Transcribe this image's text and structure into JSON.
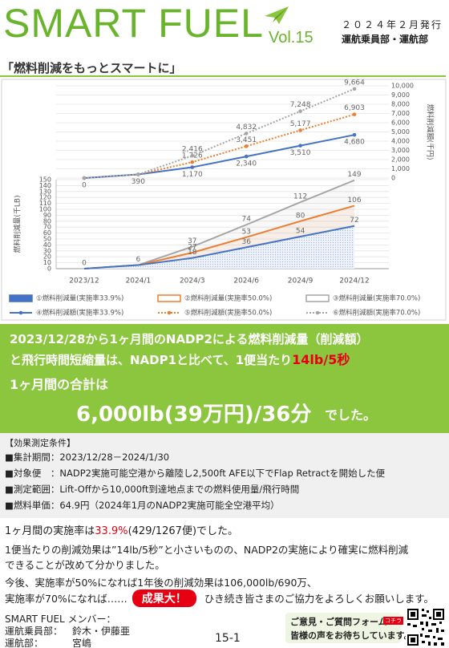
{
  "header": {
    "title": "SMART FUEL",
    "volume": "Vol.15",
    "date": "２０２４年２月発行",
    "department": "運航乗員部・運航部"
  },
  "subtitle": "「燃料削減をもっとスマートに」",
  "chart_data": {
    "type": "line",
    "categories": [
      "2023/12",
      "2024/1",
      "2024/3",
      "2024/6",
      "2024/9",
      "2024/12"
    ],
    "ylabel": "燃料削減量(千LB)",
    "y2label": "燃料削減額(千円)",
    "ylim": [
      0,
      150
    ],
    "yticks": [
      0,
      10,
      20,
      30,
      40,
      50,
      60,
      70,
      80,
      90,
      100,
      110,
      120,
      130,
      140,
      150
    ],
    "y2lim": [
      0,
      10000
    ],
    "y2ticks": [
      0,
      {
        "value": 1000,
        "label": "1,000"
      },
      {
        "value": 2000,
        "label": "2,000"
      },
      {
        "value": 3000,
        "label": "3,000"
      },
      {
        "value": 4000,
        "label": "4,000"
      },
      {
        "value": 5000,
        "label": "5,000"
      },
      {
        "value": 6000,
        "label": "6,000"
      },
      {
        "value": 7000,
        "label": "7,000"
      },
      {
        "value": 8000,
        "label": "8,000"
      },
      {
        "value": 9000,
        "label": "9,000"
      },
      {
        "value": 10000,
        "label": "10,000"
      }
    ],
    "grid": true,
    "series": [
      {
        "name": "①燃料削減量(実施率33.9%)",
        "color": "#4472c4",
        "type": "area",
        "filled": true,
        "values": [
          0,
          6,
          18,
          36,
          54,
          72
        ]
      },
      {
        "name": "②燃料削減量(実施率50.0%)",
        "color": "#ed7d31",
        "type": "area",
        "filled": false,
        "values": [
          0,
          6,
          27,
          53,
          80,
          106
        ]
      },
      {
        "name": "③燃料削減量(実施率70.0%)",
        "color": "#a5a5a5",
        "type": "area",
        "filled": false,
        "values": [
          0,
          6,
          37,
          74,
          112,
          149
        ]
      },
      {
        "name": "④燃料削減額(実施率33.9%)",
        "color": "#4472c4",
        "type": "line",
        "dashed": false,
        "axis": "y2",
        "values": [
          0,
          390,
          1170,
          2340,
          3510,
          4680
        ],
        "value_labels": [
          "0",
          "390",
          "1,170",
          "2,340",
          "3,510",
          "4,680"
        ]
      },
      {
        "name": "⑤燃料削減額(実施率50.0%)",
        "color": "#ed7d31",
        "type": "line",
        "dashed": true,
        "axis": "y2",
        "values": [
          0,
          390,
          1726,
          3451,
          5177,
          6903
        ],
        "value_labels": [
          "0",
          "390",
          "1,726",
          "3,451",
          "5,177",
          "6,903"
        ]
      },
      {
        "name": "⑥燃料削減額(実施率70.0%)",
        "color": "#a5a5a5",
        "type": "line",
        "dashed": true,
        "axis": "y2",
        "values": [
          0,
          390,
          2416,
          4832,
          7248,
          9664
        ],
        "value_labels": [
          "0",
          "390",
          "2,416",
          "4,832",
          "7,248",
          "9,664"
        ]
      }
    ]
  },
  "summary": {
    "line1": "2023/12/28から1ヶ月間のNADP2による燃料削減量（削減額）",
    "line2": "と飛行時間短縮量は、NADP1と比べて、1便当たり",
    "highlight": "14lb/5秒",
    "total_intro": "1ヶ月間の合計は",
    "total": "6,000lb(39万円)/36分",
    "total_end": "でした。"
  },
  "conditions": {
    "heading": "【効果測定条件】",
    "items": [
      "■集計期間：2023/12/28－2024/1/30",
      "■対象便　：NADP2実施可能空港から離陸し2,500ft AFE以下でFlap Retractを開始した便",
      "■測定範囲：Lift-Offから10,000ft到達地点までの燃料使用量/飛行時間",
      "■燃料単価：64.9円（2024年1月のNADP2実施可能全空港平均）"
    ]
  },
  "body": {
    "rate_pre": "1ヶ月間の実施率は",
    "rate": "33.9%",
    "rate_post": "(429/1267便)でした。",
    "effect_1": "1便当たりの削減効果は”14lb/5秒”と小さいものの、NADP2の実施により確実に燃料削減",
    "effect_2": "できることが改めて分かりました。",
    "future_1": "今後、実施率が50%になれば1年後の削減効果は106,000lb/690万、",
    "future_2": "実施率が70%になれば……",
    "badge": "成果大！",
    "future_3": "ひき続き皆さまのご協力をよろしくお願いします。"
  },
  "footer": {
    "members_title": "SMART FUEL メンバー：",
    "members": [
      {
        "dept": "運航乗員部：",
        "names": "鈴木・伊藤亜"
      },
      {
        "dept": "運航部：",
        "names": "宮嶋"
      }
    ],
    "page": "15-1",
    "form_title": "ご意見・ご質問フォーム",
    "form_tag": "コチラ",
    "form_note": "皆様の声をお待ちしています。"
  }
}
